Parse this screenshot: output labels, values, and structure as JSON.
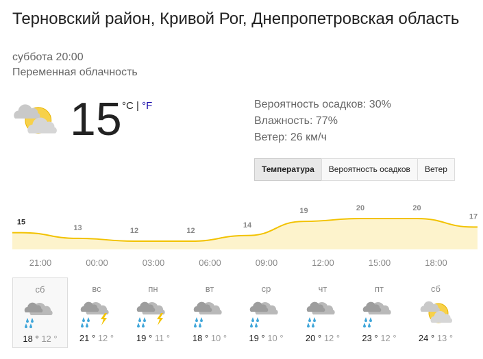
{
  "header": {
    "location": "Терновский район, Кривой Рог, Днепропетровская область",
    "datetime": "суббота 20:00",
    "condition": "Переменная облачность"
  },
  "current": {
    "temperature": "15",
    "unit_c": "°C",
    "separator": "|",
    "unit_f": "°F",
    "icon": "partly-cloudy"
  },
  "details": [
    "Вероятность осадков: 30%",
    "Влажность: 77%",
    "Ветер: 26 км/ч"
  ],
  "tabs": [
    "Температура",
    "Вероятность осадков",
    "Ветер"
  ],
  "chart_data": {
    "type": "area",
    "values": [
      15,
      13,
      12,
      12,
      14,
      19,
      20,
      20,
      17
    ],
    "color": "#f2c200",
    "fill": "#fdf3cc"
  },
  "time_labels": [
    "21:00",
    "00:00",
    "03:00",
    "06:00",
    "09:00",
    "12:00",
    "15:00",
    "18:00"
  ],
  "forecast": [
    {
      "day": "сб",
      "icon": "rain",
      "high": "18 °",
      "low": "12 °"
    },
    {
      "day": "вс",
      "icon": "storm",
      "high": "21 °",
      "low": "12 °"
    },
    {
      "day": "пн",
      "icon": "storm",
      "high": "19 °",
      "low": "11 °"
    },
    {
      "day": "вт",
      "icon": "rain",
      "high": "18 °",
      "low": "10 °"
    },
    {
      "day": "ср",
      "icon": "rain",
      "high": "19 °",
      "low": "10 °"
    },
    {
      "day": "чт",
      "icon": "rain",
      "high": "20 °",
      "low": "12 °"
    },
    {
      "day": "пт",
      "icon": "rain",
      "high": "23 °",
      "low": "12 °"
    },
    {
      "day": "сб",
      "icon": "partly-cloudy",
      "high": "24 °",
      "low": "13 °"
    }
  ]
}
